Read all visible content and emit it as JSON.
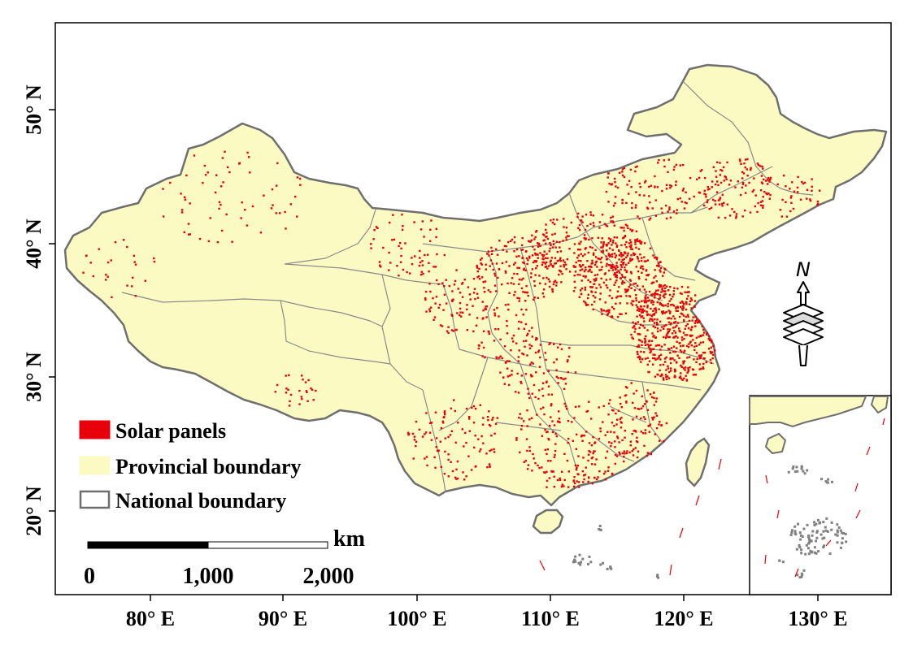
{
  "map": {
    "x_ticks": [
      "80° E",
      "90° E",
      "100° E",
      "110° E",
      "120° E",
      "130° E"
    ],
    "y_ticks": [
      "50° N",
      "40° N",
      "30° N",
      "20° N"
    ],
    "colors": {
      "land": "#FBFAC3",
      "national_border": "#6f6f6f",
      "provincial_border": "#8a8a8a",
      "solar": "#E8000B",
      "island": "#808080"
    }
  },
  "legend": {
    "solar_label": "Solar panels",
    "provincial_label": "Provincial boundary",
    "national_label": "National boundary"
  },
  "scale_bar": {
    "unit": "km",
    "labels": [
      "0",
      "1,000",
      "2,000"
    ]
  },
  "north_arrow": {
    "label": "N",
    "icon": "north-arrow-icon"
  },
  "inset": {
    "name": "South China Sea islands inset"
  }
}
